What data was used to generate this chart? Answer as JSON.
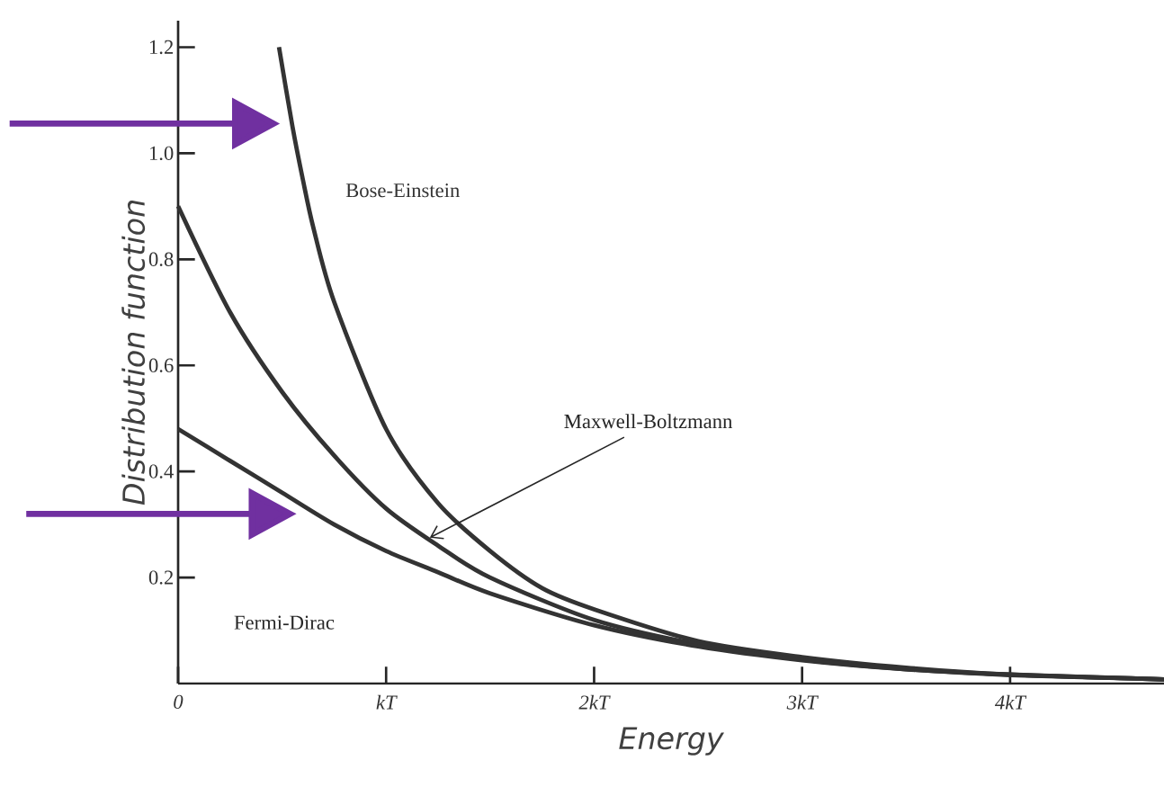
{
  "chart_data": {
    "type": "line",
    "xlabel": "Energy",
    "ylabel": "Distribution function",
    "xlim": [
      0,
      4.74
    ],
    "ylim": [
      0,
      1.25
    ],
    "xticks": [
      0,
      {
        "value": 1,
        "label": "kT"
      },
      {
        "value": 2,
        "label": "2kT"
      },
      {
        "value": 3,
        "label": "3kT"
      },
      {
        "value": 4,
        "label": "4kT"
      }
    ],
    "yticks": [
      0.2,
      0.4,
      0.6,
      0.8,
      {
        "value": 1,
        "label": "1.0"
      },
      1.2
    ],
    "annotations": [
      {
        "text": "Maxwell-Boltzmann",
        "x": 1.21,
        "y": 0.275
      },
      "Fermi-Dirac"
    ],
    "grid": false,
    "legend": false,
    "marker": "none",
    "line_style": "solid",
    "series": [
      {
        "name": "Bose-Einstein",
        "color": "#333333",
        "x": [
          0.485,
          0.55,
          0.6,
          0.65,
          0.75,
          1,
          1.25,
          1.5,
          1.75,
          2,
          2.5,
          3,
          3.5,
          4,
          4.74
        ],
        "values": [
          1.2,
          1.05,
          0.95,
          0.86,
          0.72,
          0.48,
          0.34,
          0.25,
          0.18,
          0.14,
          0.08,
          0.05,
          0.03,
          0.017,
          0.008
        ]
      },
      {
        "color": "#333333",
        "x": [
          0,
          0.25,
          0.5,
          0.75,
          1,
          1.25,
          1.5,
          2,
          2.5,
          3,
          3.5,
          4,
          4.74
        ],
        "values": [
          0.9,
          0.7,
          0.55,
          0.43,
          0.33,
          0.26,
          0.2,
          0.12,
          0.074,
          0.045,
          0.027,
          0.016,
          0.008
        ]
      },
      {
        "color": "#333333",
        "x": [
          0,
          0.25,
          0.5,
          0.75,
          1,
          1.25,
          1.5,
          2,
          2.5,
          3,
          3.5,
          4,
          4.74
        ],
        "values": [
          0.48,
          0.42,
          0.36,
          0.3,
          0.25,
          0.21,
          0.17,
          0.11,
          0.07,
          0.044,
          0.027,
          0.017,
          0.008
        ]
      }
    ]
  }
}
